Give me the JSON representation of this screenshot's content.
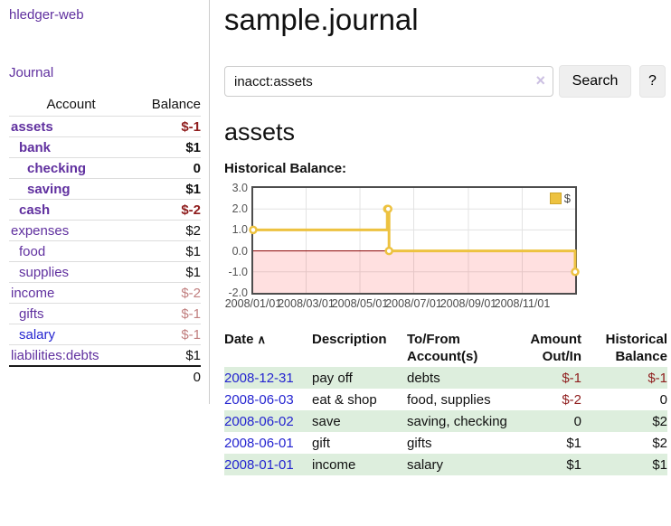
{
  "app": {
    "brand": "hledger-web"
  },
  "sidebar": {
    "journal_link": "Journal",
    "accounts": {
      "col_account": "Account",
      "col_balance": "Balance",
      "rows": [
        {
          "name": "assets",
          "balance": "$-1",
          "depth": 1,
          "bold": true,
          "name_color": "#60309f",
          "balance_color": "#8f1d1d"
        },
        {
          "name": "bank",
          "balance": "$1",
          "depth": 2,
          "bold": true,
          "name_color": "#60309f",
          "balance_color": "#111111"
        },
        {
          "name": "checking",
          "balance": "0",
          "depth": 3,
          "bold": true,
          "name_color": "#60309f",
          "balance_color": "#111111"
        },
        {
          "name": "saving",
          "balance": "$1",
          "depth": 3,
          "bold": true,
          "name_color": "#60309f",
          "balance_color": "#111111"
        },
        {
          "name": "cash",
          "balance": "$-2",
          "depth": 2,
          "bold": true,
          "name_color": "#60309f",
          "balance_color": "#8f1d1d"
        },
        {
          "name": "expenses",
          "balance": "$2",
          "depth": 1,
          "bold": false,
          "name_color": "#60309f",
          "balance_color": "#111111"
        },
        {
          "name": "food",
          "balance": "$1",
          "depth": 2,
          "bold": false,
          "name_color": "#60309f",
          "balance_color": "#111111"
        },
        {
          "name": "supplies",
          "balance": "$1",
          "depth": 2,
          "bold": false,
          "name_color": "#60309f",
          "balance_color": "#111111"
        },
        {
          "name": "income",
          "balance": "$-2",
          "depth": 1,
          "bold": false,
          "name_color": "#60309f",
          "balance_color": "#c17f7f"
        },
        {
          "name": "gifts",
          "balance": "$-1",
          "depth": 2,
          "bold": false,
          "name_color": "#60309f",
          "balance_color": "#c17f7f"
        },
        {
          "name": "salary",
          "balance": "$-1",
          "depth": 2,
          "bold": false,
          "name_color": "#2424d0",
          "balance_color": "#c17f7f"
        },
        {
          "name": "liabilities:debts",
          "balance": "$1",
          "depth": 1,
          "bold": false,
          "name_color": "#60309f",
          "balance_color": "#111111"
        }
      ],
      "total": "0"
    }
  },
  "header": {
    "title": "sample.journal"
  },
  "search": {
    "value": "inacct:assets",
    "clear_icon": "×",
    "search_button": "Search",
    "help_button": "?"
  },
  "account_page": {
    "heading": "assets",
    "chart_title": "Historical Balance:"
  },
  "chart_data": {
    "type": "line",
    "line_style": "step",
    "title": "Historical Balance",
    "series": [
      {
        "name": "$",
        "color": "#edc240",
        "points": [
          {
            "date": "2008-01-01",
            "value": 1
          },
          {
            "date": "2008-06-01",
            "value": 2
          },
          {
            "date": "2008-06-02",
            "value": 2
          },
          {
            "date": "2008-06-03",
            "value": 0
          },
          {
            "date": "2008-12-31",
            "value": -1
          }
        ]
      }
    ],
    "x_range": [
      "2008-01-01",
      "2008-12-31"
    ],
    "x_ticks": [
      {
        "date": "2008-01-01",
        "label": "2008/01/01"
      },
      {
        "date": "2008-03-01",
        "label": "2008/03/01"
      },
      {
        "date": "2008-05-01",
        "label": "2008/05/01"
      },
      {
        "date": "2008-07-01",
        "label": "2008/07/01"
      },
      {
        "date": "2008-09-01",
        "label": "2008/09/01"
      },
      {
        "date": "2008-11-01",
        "label": "2008/11/01"
      }
    ],
    "ylim": [
      -2,
      3
    ],
    "y_ticks": [
      {
        "value": 3,
        "label": "3.0"
      },
      {
        "value": 2,
        "label": "2.0"
      },
      {
        "value": 1,
        "label": "1.0"
      },
      {
        "value": 0,
        "label": "0.0"
      },
      {
        "value": -1,
        "label": "-1.0"
      },
      {
        "value": -2,
        "label": "-2.0"
      }
    ],
    "grid": true,
    "legend_position": "top-right",
    "legend": {
      "label": "$"
    },
    "grid_color": "#e3e3e3",
    "zero_line_color": "#8b0000",
    "negative_region_color": "rgba(255,0,0,0.12)",
    "marker_fill": "#ffffff"
  },
  "register_table": {
    "headers": {
      "date": "Date",
      "sort_icon": "∧",
      "description": "Description",
      "account": "To/From Account(s)",
      "amount": "Amount Out/In",
      "balance": "Historical Balance"
    },
    "rows": [
      {
        "date": "2008-12-31",
        "description": "pay off",
        "account": "debts",
        "amount": "$-1",
        "amount_negative": true,
        "balance": "$-1",
        "balance_negative": true
      },
      {
        "date": "2008-06-03",
        "description": "eat & shop",
        "account": "food, supplies",
        "amount": "$-2",
        "amount_negative": true,
        "balance": "0",
        "balance_negative": false
      },
      {
        "date": "2008-06-02",
        "description": "save",
        "account": "saving, checking",
        "amount": "0",
        "amount_negative": false,
        "balance": "$2",
        "balance_negative": false
      },
      {
        "date": "2008-06-01",
        "description": "gift",
        "account": "gifts",
        "amount": "$1",
        "amount_negative": false,
        "balance": "$2",
        "balance_negative": false
      },
      {
        "date": "2008-01-01",
        "description": "income",
        "account": "salary",
        "amount": "$1",
        "amount_negative": false,
        "balance": "$1",
        "balance_negative": false
      }
    ]
  }
}
